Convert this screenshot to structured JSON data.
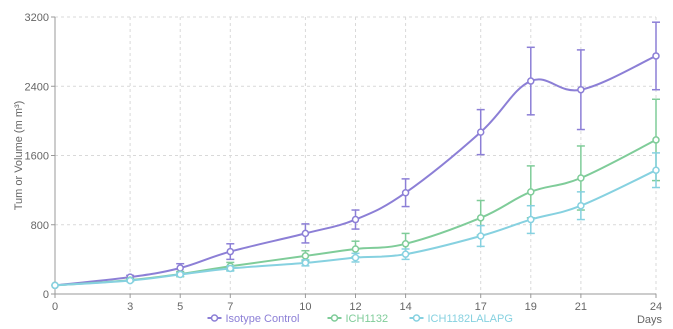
{
  "chart_data": {
    "type": "line",
    "title": "",
    "xlabel": "Days",
    "ylabel": "Tum or Volume (m m³)",
    "x": [
      0,
      3,
      5,
      7,
      10,
      12,
      14,
      17,
      19,
      21,
      24
    ],
    "x_tick_labels": [
      "0",
      "3",
      "5",
      "7",
      "10",
      "12",
      "14",
      "17",
      "19",
      "21",
      "24"
    ],
    "xlim": [
      0,
      24
    ],
    "ylim": [
      0,
      3200
    ],
    "y_ticks": [
      0,
      800,
      1600,
      2400,
      3200
    ],
    "y_tick_labels": [
      "0",
      "800",
      "1600",
      "2400",
      "3200"
    ],
    "grid": true,
    "legend_position": "bottom",
    "series": [
      {
        "name": "Isotype Control",
        "color": "#8c7fd6",
        "values": [
          100,
          195,
          300,
          490,
          700,
          860,
          1170,
          1870,
          2460,
          2360,
          2750
        ],
        "error": [
          0,
          20,
          50,
          90,
          110,
          110,
          160,
          260,
          390,
          460,
          390
        ]
      },
      {
        "name": "ICH1132",
        "color": "#7fcc99",
        "values": [
          100,
          160,
          230,
          320,
          440,
          520,
          580,
          880,
          1180,
          1340,
          1780
        ],
        "error": [
          0,
          15,
          30,
          45,
          60,
          90,
          120,
          200,
          300,
          370,
          470
        ]
      },
      {
        "name": "ICH1182LALAPG",
        "color": "#86d1e0",
        "values": [
          100,
          155,
          225,
          295,
          360,
          420,
          460,
          670,
          860,
          1020,
          1430
        ],
        "error": [
          0,
          10,
          20,
          30,
          35,
          50,
          60,
          120,
          160,
          160,
          200
        ]
      }
    ]
  }
}
